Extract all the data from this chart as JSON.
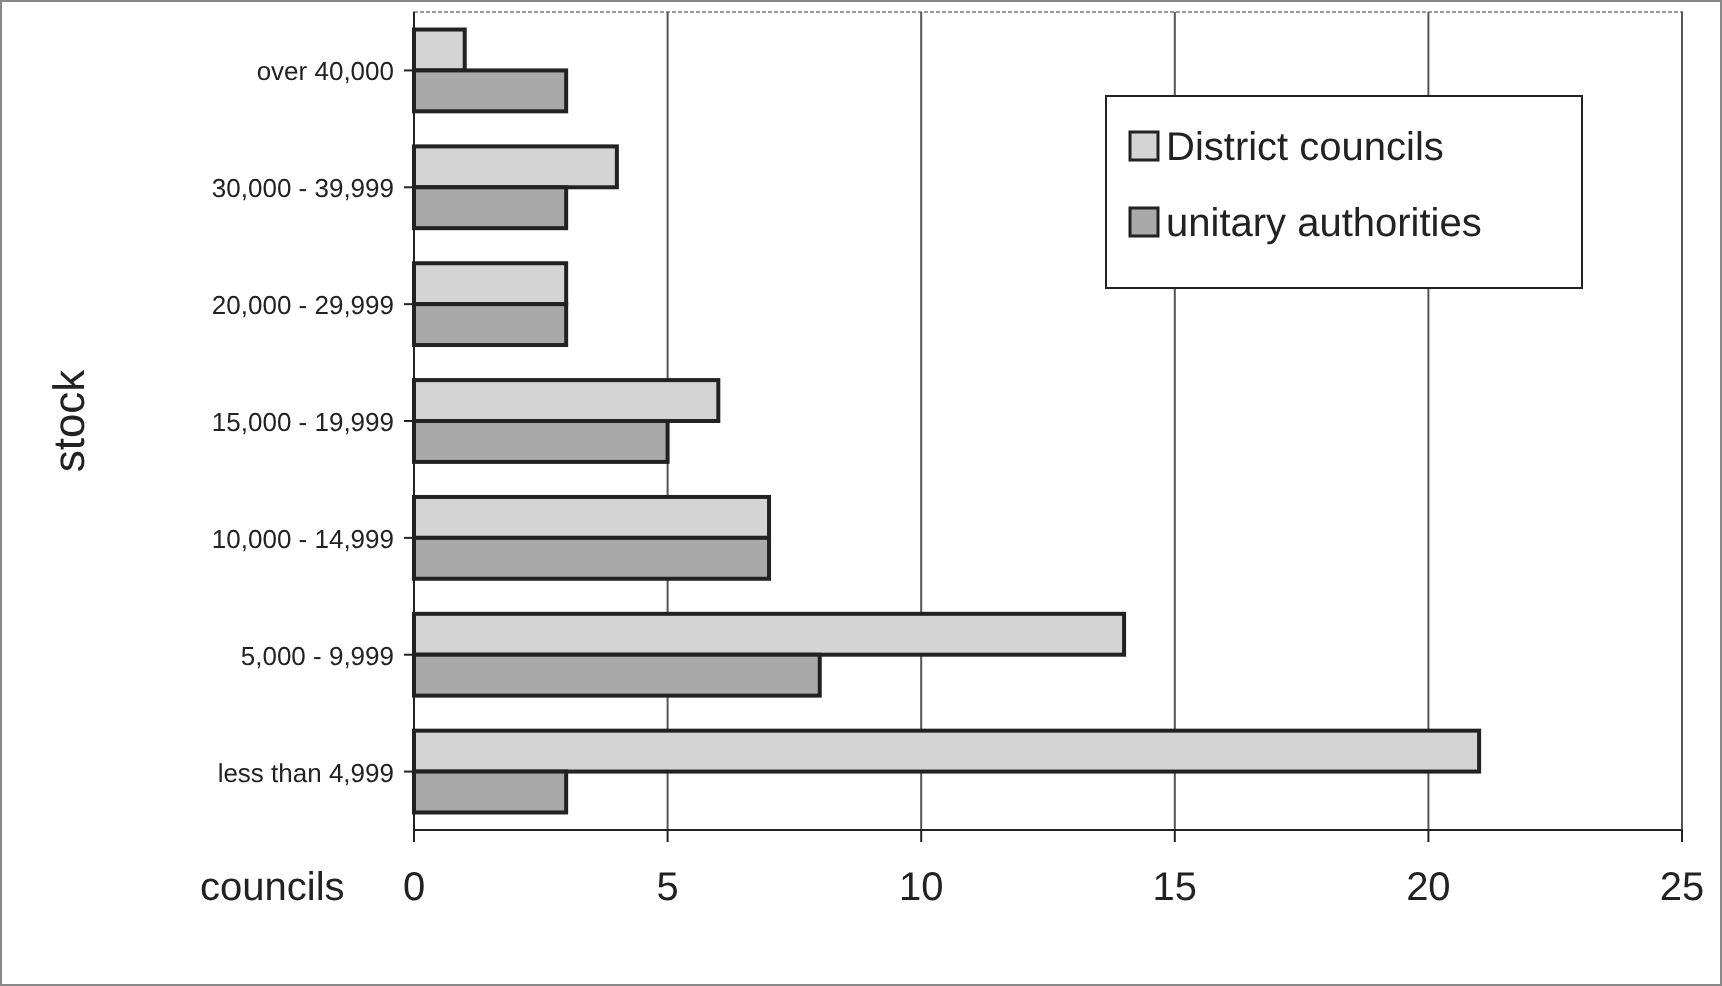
{
  "chart_data": {
    "type": "bar",
    "orientation": "horizontal",
    "categories": [
      "over 40,000",
      "30,000 - 39,999",
      "20,000 - 29,999",
      "15,000 - 19,999",
      "10,000 - 14,999",
      "5,000 - 9,999",
      "less than 4,999"
    ],
    "series": [
      {
        "name": "District councils",
        "color": "#d4d4d4",
        "values": [
          1,
          4,
          3,
          6,
          7,
          14,
          21
        ]
      },
      {
        "name": "unitary authorities",
        "color": "#a9a9a9",
        "values": [
          3,
          3,
          3,
          5,
          7,
          8,
          3
        ]
      }
    ],
    "xlim": [
      0,
      25
    ],
    "xticks": [
      0,
      5,
      10,
      15,
      20,
      25
    ],
    "xlabel": "councils",
    "ylabel": "stock",
    "grid": "x",
    "legend": "top right"
  }
}
